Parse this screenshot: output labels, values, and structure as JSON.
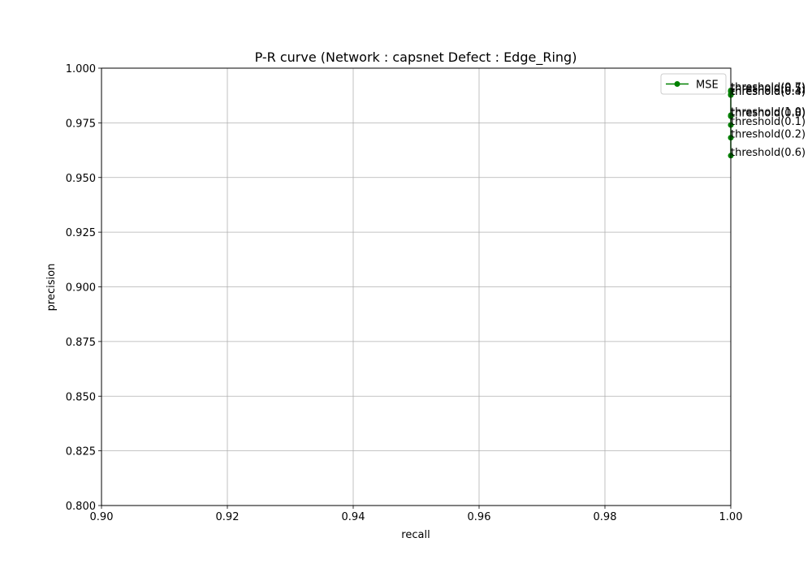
{
  "chart_data": {
    "type": "line",
    "title": "P-R curve (Network : capsnet Defect : Edge_Ring)",
    "xlabel": "recall",
    "ylabel": "precision",
    "xlim": [
      0.9,
      1.0
    ],
    "ylim": [
      0.8,
      1.0
    ],
    "xticks": [
      "0.90",
      "0.92",
      "0.94",
      "0.96",
      "0.98",
      "1.00"
    ],
    "yticks": [
      "0.800",
      "0.825",
      "0.850",
      "0.875",
      "0.900",
      "0.925",
      "0.950",
      "0.975",
      "1.000"
    ],
    "grid": true,
    "legend_position": "top-right",
    "series": [
      {
        "name": "MSE",
        "color": "#008000",
        "marker": "circle",
        "points": [
          {
            "x": 1.0,
            "y": 0.9898,
            "label": "threshold(0.7)"
          },
          {
            "x": 1.0,
            "y": 0.9893,
            "label": "threshold(0.5)"
          },
          {
            "x": 1.0,
            "y": 0.988,
            "label": "threshold(0.3)"
          },
          {
            "x": 1.0,
            "y": 0.9877,
            "label": "threshold(0.4)"
          },
          {
            "x": 1.0,
            "y": 0.9785,
            "label": "threshold(1.0)"
          },
          {
            "x": 1.0,
            "y": 0.978,
            "label": "threshold(0.8)"
          },
          {
            "x": 1.0,
            "y": 0.974,
            "label": "threshold(0.1)"
          },
          {
            "x": 1.0,
            "y": 0.9682,
            "label": "threshold(0.2)"
          },
          {
            "x": 1.0,
            "y": 0.96,
            "label": "threshold(0.6)"
          }
        ]
      }
    ]
  }
}
